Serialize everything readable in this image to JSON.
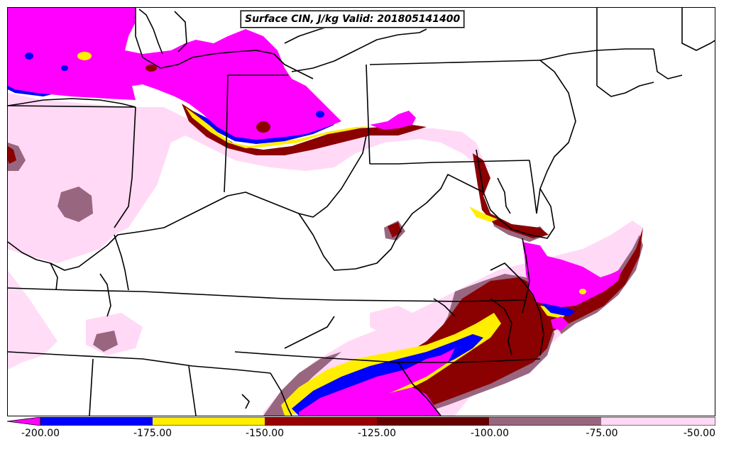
{
  "title": "Surface CIN, J/kg Valid: 201805141400",
  "colors": {
    "below_-200": "#ff00ff",
    "-200_-175": "#0000ff",
    "-175_-150": "#ffee00",
    "-150_-125": "#990000",
    "-125_-100": "#660000",
    "-100_-75": "#996680",
    "-75_-50": "#ffd9f5",
    "state_lines": "#000000",
    "background": "#ffffff"
  },
  "colorbar": {
    "ticks": [
      "-200.00",
      "-175.00",
      "-150.00",
      "-125.00",
      "-100.00",
      "-75.00",
      "-50.00"
    ],
    "levels": [
      -200,
      -175,
      -150,
      -125,
      -100,
      -75,
      -50
    ],
    "extend": "min"
  },
  "map": {
    "region": "Ohio Valley / Mid-Atlantic / Northeast US",
    "field": "Surface CIN",
    "units": "J/kg"
  }
}
